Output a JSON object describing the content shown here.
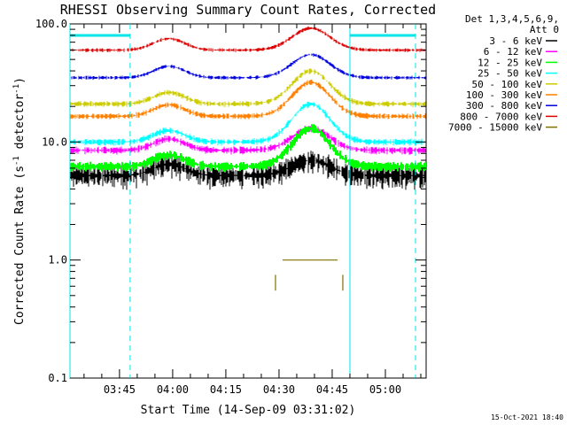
{
  "chart_data": {
    "type": "line",
    "title": "RHESSI Observing Summary Count Rates, Corrected",
    "xlabel": "Start Time (14-Sep-09 03:31:02)",
    "ylabel": "Corrected Count Rate (s",
    "ylabel_sup": "-1",
    "ylabel_rest": " detector",
    "ylabel_close": ")",
    "y_scale": "log",
    "ylim": [
      0.1,
      100.0
    ],
    "xlim": [
      "03:31:02",
      "05:11:30"
    ],
    "x_ticks": [
      "03:45",
      "04:00",
      "04:15",
      "04:30",
      "04:45",
      "05:00"
    ],
    "y_ticks": [
      "0.1",
      "1.0",
      "10.0",
      "100.0"
    ],
    "legend_header": [
      "Det 1,3,4,5,6,9,",
      "Att 0"
    ],
    "legend_position": "right",
    "footer_date": "15-Oct-2021 18:40",
    "markers": {
      "solid": [
        "03:31:02",
        "04:50:00"
      ],
      "dashed": [
        "03:48:00",
        "05:08:30"
      ]
    },
    "series": [
      {
        "name": "3 - 6 keV",
        "color": "#000000",
        "base": 5.2,
        "peak": 7.0,
        "noise": 0.25
      },
      {
        "name": "6 - 12 keV",
        "color": "#ff00ff",
        "base": 8.5,
        "peak": 13.0,
        "noise": 0.08
      },
      {
        "name": "12 - 25 keV",
        "color": "#00ff00",
        "base": 6.2,
        "peak": 13.0,
        "noise": 0.1
      },
      {
        "name": "25 - 50 keV",
        "color": "#00ffff",
        "base": 10.0,
        "peak": 21.0,
        "noise": 0.07
      },
      {
        "name": "50 - 100 keV",
        "color": "#cccc00",
        "base": 21.0,
        "peak": 40.0,
        "noise": 0.06
      },
      {
        "name": "100 - 300 keV",
        "color": "#ff8000",
        "base": 16.5,
        "peak": 32.0,
        "noise": 0.06
      },
      {
        "name": "300 - 800 keV",
        "color": "#0000dd",
        "base": 35.0,
        "peak": 55.0,
        "noise": 0.04
      },
      {
        "name": "800 - 7000 keV",
        "color": "#dd0000",
        "base": 60.0,
        "peak": 92.0,
        "noise": 0.04
      },
      {
        "name": "7000 - 15000 keV",
        "color": "#807000",
        "segment": [
          "04:29:00",
          "04:48:00"
        ],
        "value": 1.0
      }
    ]
  }
}
